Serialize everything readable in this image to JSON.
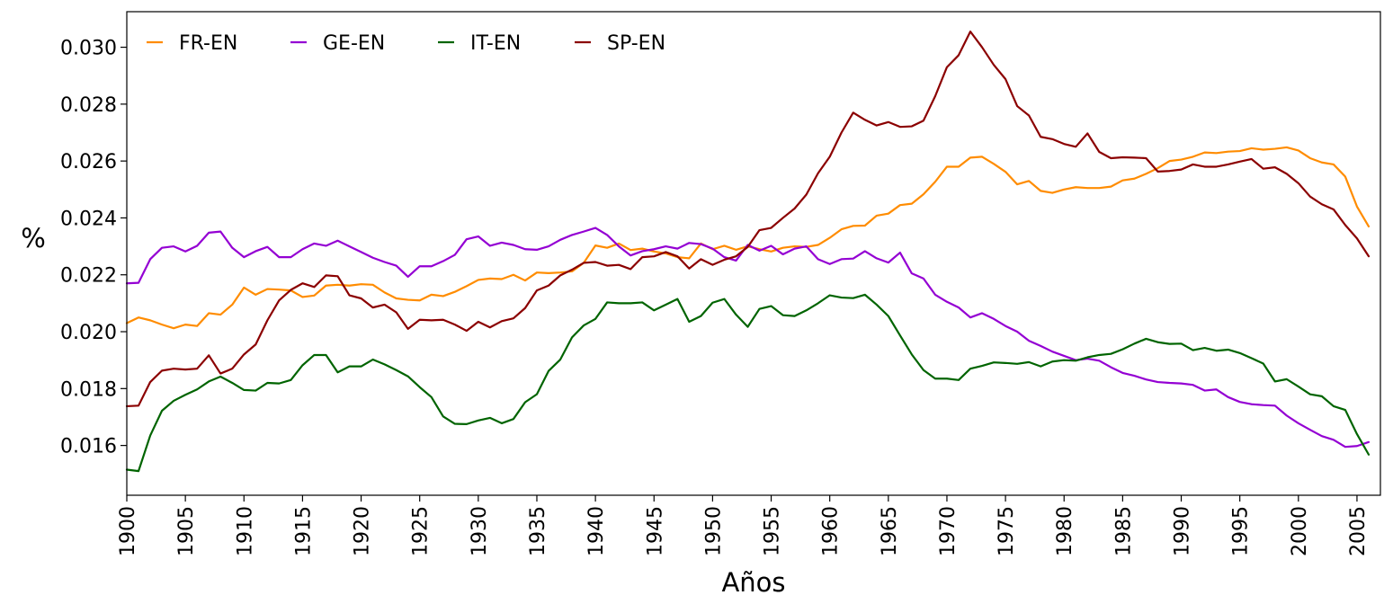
{
  "chart_data": {
    "type": "line",
    "title": "",
    "xlabel": "Años",
    "ylabel": "%",
    "xlim": [
      1900,
      2007
    ],
    "ylim": [
      0.01425,
      0.03125
    ],
    "grid": false,
    "legend_position": "top-left",
    "x_ticks": [
      1900,
      1905,
      1910,
      1915,
      1920,
      1925,
      1930,
      1935,
      1940,
      1945,
      1950,
      1955,
      1960,
      1965,
      1970,
      1975,
      1980,
      1985,
      1990,
      1995,
      2000,
      2005
    ],
    "y_ticks": [
      0.016,
      0.018,
      0.02,
      0.022,
      0.024,
      0.026,
      0.028,
      0.03
    ],
    "y_tick_labels": [
      "0.016",
      "0.018",
      "0.020",
      "0.022",
      "0.024",
      "0.026",
      "0.028",
      "0.030"
    ],
    "x": [
      1900,
      1901,
      1902,
      1903,
      1904,
      1905,
      1906,
      1907,
      1908,
      1909,
      1910,
      1911,
      1912,
      1913,
      1914,
      1915,
      1916,
      1917,
      1918,
      1919,
      1920,
      1921,
      1922,
      1923,
      1924,
      1925,
      1926,
      1927,
      1928,
      1929,
      1930,
      1931,
      1932,
      1933,
      1934,
      1935,
      1936,
      1937,
      1938,
      1939,
      1940,
      1941,
      1942,
      1943,
      1944,
      1945,
      1946,
      1947,
      1948,
      1949,
      1950,
      1951,
      1952,
      1953,
      1954,
      1955,
      1956,
      1957,
      1958,
      1959,
      1960,
      1961,
      1962,
      1963,
      1964,
      1965,
      1966,
      1967,
      1968,
      1969,
      1970,
      1971,
      1972,
      1973,
      1974,
      1975,
      1976,
      1977,
      1978,
      1979,
      1980,
      1981,
      1982,
      1983,
      1984,
      1985,
      1986,
      1987,
      1988,
      1989,
      1990,
      1991,
      1992,
      1993,
      1994,
      1995,
      1996,
      1997,
      1998,
      1999,
      2000,
      2001,
      2002,
      2003,
      2004,
      2005,
      2006
    ],
    "series": [
      {
        "name": "FR-EN",
        "color": "#ff8c00",
        "values": [
          0.0203,
          0.0205,
          0.0204,
          0.02025,
          0.02012,
          0.02025,
          0.0202,
          0.02065,
          0.0206,
          0.02095,
          0.02155,
          0.0213,
          0.0215,
          0.02148,
          0.02145,
          0.02122,
          0.02127,
          0.02162,
          0.02165,
          0.02162,
          0.02167,
          0.02165,
          0.02138,
          0.02117,
          0.02112,
          0.0211,
          0.0213,
          0.02125,
          0.0214,
          0.0216,
          0.02182,
          0.02187,
          0.02185,
          0.022,
          0.0218,
          0.02208,
          0.02206,
          0.02208,
          0.02212,
          0.02242,
          0.02303,
          0.02295,
          0.0231,
          0.02287,
          0.02292,
          0.02282,
          0.02275,
          0.02262,
          0.02258,
          0.0231,
          0.0229,
          0.02302,
          0.02288,
          0.023,
          0.0229,
          0.02282,
          0.02295,
          0.023,
          0.02298,
          0.02305,
          0.0233,
          0.0236,
          0.02372,
          0.02373,
          0.02408,
          0.02415,
          0.02445,
          0.0245,
          0.02483,
          0.02527,
          0.0258,
          0.0258,
          0.02612,
          0.02615,
          0.0259,
          0.02562,
          0.02518,
          0.0253,
          0.02495,
          0.02488,
          0.025,
          0.02508,
          0.02505,
          0.02505,
          0.0251,
          0.02532,
          0.02538,
          0.02555,
          0.02575,
          0.026,
          0.02605,
          0.02615,
          0.0263,
          0.02628,
          0.02633,
          0.02635,
          0.02645,
          0.0264,
          0.02643,
          0.02648,
          0.02637,
          0.0261,
          0.02595,
          0.02588,
          0.02545,
          0.0244,
          0.0237
        ]
      },
      {
        "name": "GE-EN",
        "color": "#9400d3",
        "values": [
          0.0217,
          0.02172,
          0.02255,
          0.02295,
          0.023,
          0.02282,
          0.02302,
          0.02348,
          0.02352,
          0.02295,
          0.02262,
          0.02283,
          0.02298,
          0.02262,
          0.02262,
          0.0229,
          0.0231,
          0.02302,
          0.0232,
          0.023,
          0.0228,
          0.0226,
          0.02245,
          0.02232,
          0.02193,
          0.0223,
          0.0223,
          0.02248,
          0.0227,
          0.02325,
          0.02335,
          0.02302,
          0.02313,
          0.02305,
          0.0229,
          0.02288,
          0.023,
          0.02323,
          0.0234,
          0.02352,
          0.02365,
          0.0234,
          0.023,
          0.02268,
          0.02283,
          0.0229,
          0.023,
          0.02292,
          0.02312,
          0.02308,
          0.02292,
          0.02262,
          0.0225,
          0.02305,
          0.02285,
          0.02302,
          0.02272,
          0.02292,
          0.023,
          0.02255,
          0.02238,
          0.02255,
          0.02257,
          0.02283,
          0.02258,
          0.02243,
          0.02278,
          0.02205,
          0.02187,
          0.0213,
          0.02105,
          0.02085,
          0.0205,
          0.02065,
          0.02045,
          0.0202,
          0.02,
          0.01968,
          0.0195,
          0.0193,
          0.01915,
          0.019,
          0.01905,
          0.01898,
          0.01875,
          0.01855,
          0.01845,
          0.01832,
          0.01823,
          0.0182,
          0.01818,
          0.01813,
          0.01793,
          0.01797,
          0.0177,
          0.01753,
          0.01745,
          0.01742,
          0.0174,
          0.01705,
          0.01678,
          0.01655,
          0.01633,
          0.0162,
          0.01595,
          0.01598,
          0.01612
        ]
      },
      {
        "name": "IT-EN",
        "color": "#006400",
        "values": [
          0.01515,
          0.0151,
          0.01635,
          0.01722,
          0.01757,
          0.01778,
          0.01797,
          0.01825,
          0.01842,
          0.0182,
          0.01795,
          0.01793,
          0.0182,
          0.01818,
          0.0183,
          0.01882,
          0.01918,
          0.01918,
          0.01857,
          0.01878,
          0.01878,
          0.01902,
          0.01885,
          0.01865,
          0.01843,
          0.01805,
          0.0177,
          0.01702,
          0.01676,
          0.01675,
          0.01688,
          0.01697,
          0.01678,
          0.01693,
          0.01752,
          0.0178,
          0.01862,
          0.01902,
          0.0198,
          0.02022,
          0.02045,
          0.02103,
          0.021,
          0.021,
          0.02103,
          0.02075,
          0.02095,
          0.02115,
          0.02035,
          0.02055,
          0.02102,
          0.02115,
          0.0206,
          0.02017,
          0.0208,
          0.0209,
          0.02058,
          0.02055,
          0.02075,
          0.021,
          0.02128,
          0.0212,
          0.02118,
          0.0213,
          0.02095,
          0.02055,
          0.01987,
          0.0192,
          0.01865,
          0.01835,
          0.01835,
          0.0183,
          0.0187,
          0.0188,
          0.01892,
          0.0189,
          0.01887,
          0.01893,
          0.01878,
          0.01895,
          0.019,
          0.01898,
          0.0191,
          0.01918,
          0.01922,
          0.01938,
          0.01958,
          0.01975,
          0.01963,
          0.01957,
          0.01958,
          0.01935,
          0.01943,
          0.01933,
          0.01937,
          0.01925,
          0.01907,
          0.01888,
          0.01825,
          0.01833,
          0.01807,
          0.0178,
          0.01773,
          0.01738,
          0.01725,
          0.0164,
          0.01568
        ]
      },
      {
        "name": "SP-EN",
        "color": "#8b0000",
        "values": [
          0.01738,
          0.0174,
          0.01823,
          0.01863,
          0.0187,
          0.01867,
          0.0187,
          0.01917,
          0.01853,
          0.0187,
          0.0192,
          0.01955,
          0.0204,
          0.0211,
          0.02147,
          0.0217,
          0.02157,
          0.02198,
          0.02195,
          0.02128,
          0.02117,
          0.02085,
          0.02095,
          0.02068,
          0.0201,
          0.02042,
          0.0204,
          0.02042,
          0.02025,
          0.02003,
          0.02035,
          0.02015,
          0.02037,
          0.02047,
          0.02083,
          0.02145,
          0.02162,
          0.02198,
          0.02218,
          0.02242,
          0.02245,
          0.02232,
          0.02235,
          0.0222,
          0.02262,
          0.02265,
          0.0228,
          0.02265,
          0.02222,
          0.02255,
          0.02235,
          0.02253,
          0.02265,
          0.02298,
          0.02357,
          0.02365,
          0.024,
          0.02433,
          0.02482,
          0.02557,
          0.02615,
          0.027,
          0.0277,
          0.02745,
          0.02725,
          0.02737,
          0.0272,
          0.02722,
          0.02742,
          0.02828,
          0.0293,
          0.02972,
          0.03055,
          0.03,
          0.02938,
          0.02888,
          0.02793,
          0.0276,
          0.02685,
          0.02677,
          0.0266,
          0.0265,
          0.02697,
          0.02632,
          0.0261,
          0.02613,
          0.02612,
          0.0261,
          0.02563,
          0.02565,
          0.0257,
          0.02588,
          0.0258,
          0.0258,
          0.02588,
          0.02598,
          0.02607,
          0.02573,
          0.02578,
          0.02555,
          0.02522,
          0.02475,
          0.02448,
          0.0243,
          0.02375,
          0.02328,
          0.02265
        ]
      }
    ]
  }
}
